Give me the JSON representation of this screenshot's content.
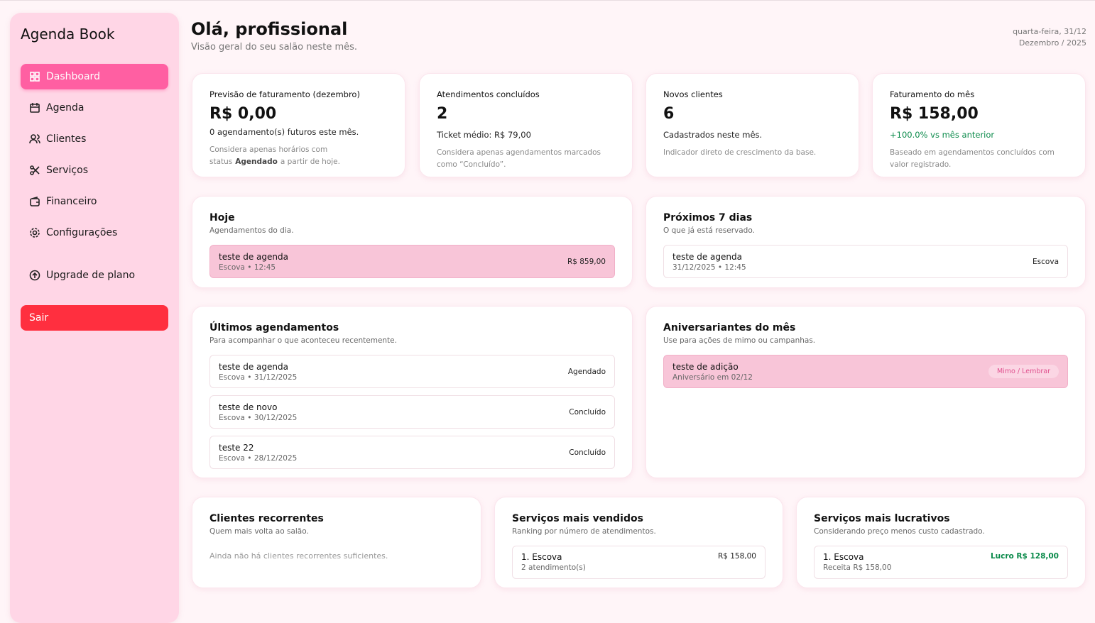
{
  "sidebar": {
    "brand": "Agenda Book",
    "nav": [
      "Dashboard",
      "Agenda",
      "Clientes",
      "Serviços",
      "Financeiro",
      "Configurações"
    ],
    "upgrade": "Upgrade de plano",
    "logout": "Sair"
  },
  "header": {
    "title": "Olá, profissional",
    "subtitle": "Visão geral do seu salão neste mês.",
    "date": "quarta-feira, 31/12",
    "month": "Dezembro / 2025"
  },
  "stats": [
    {
      "label": "Previsão de faturamento (dezembro)",
      "value": "R$ 0,00",
      "detail": "0 agendamento(s) futuros este mês.",
      "note": [
        "Considera apenas horários com status",
        "Agendado",
        "a partir de hoje."
      ]
    },
    {
      "label": "Atendimentos concluídos",
      "value": "2",
      "detail": "Ticket médio: R$ 79,00",
      "note": [
        "Considera apenas agendamentos marcados como “Concluído”."
      ]
    },
    {
      "label": "Novos clientes",
      "value": "6",
      "detail": "Cadastrados neste mês.",
      "note": [
        "Indicador direto de crescimento da base."
      ]
    },
    {
      "label": "Faturamento do mês",
      "value": "R$ 158,00",
      "detail": "+100.0% vs mês anterior",
      "note": [
        "Baseado em agendamentos concluídos com valor registrado."
      ]
    }
  ],
  "today": {
    "title": "Hoje",
    "subtitle": "Agendamentos do dia.",
    "items": [
      {
        "name": "teste de agenda",
        "meta": "Escova • 12:45",
        "right": "R$ 859,00"
      }
    ]
  },
  "next7": {
    "title": "Próximos 7 dias",
    "subtitle": "O que já está reservado.",
    "items": [
      {
        "name": "teste de agenda",
        "meta": "31/12/2025 • 12:45",
        "right": "Escova"
      }
    ]
  },
  "recent": {
    "title": "Últimos agendamentos",
    "subtitle": "Para acompanhar o que aconteceu recentemente.",
    "items": [
      {
        "name": "teste de agenda",
        "meta": "Escova • 31/12/2025",
        "right": "Agendado"
      },
      {
        "name": "teste de novo",
        "meta": "Escova • 30/12/2025",
        "right": "Concluído"
      },
      {
        "name": "teste 22",
        "meta": "Escova • 28/12/2025",
        "right": "Concluído"
      }
    ]
  },
  "birthdays": {
    "title": "Aniversariantes do mês",
    "subtitle": "Use para ações de mimo ou campanhas.",
    "items": [
      {
        "name": "teste de adição",
        "meta": "Aniversário em 02/12",
        "badge": "Mimo / Lembrar"
      }
    ]
  },
  "recurring": {
    "title": "Clientes recorrentes",
    "subtitle": "Quem mais volta ao salão.",
    "empty": "Ainda não há clientes recorrentes suficientes."
  },
  "top_sold": {
    "title": "Serviços mais vendidos",
    "subtitle": "Ranking por número de atendimentos.",
    "items": [
      {
        "name": "1. Escova",
        "meta": "2 atendimento(s)",
        "right": "R$ 158,00"
      }
    ]
  },
  "top_profit": {
    "title": "Serviços mais lucrativos",
    "subtitle": "Considerando preço menos custo cadastrado.",
    "items": [
      {
        "name": "1. Escova",
        "meta": "Receita R$ 158,00",
        "right": "Lucro R$ 128,00"
      }
    ]
  }
}
